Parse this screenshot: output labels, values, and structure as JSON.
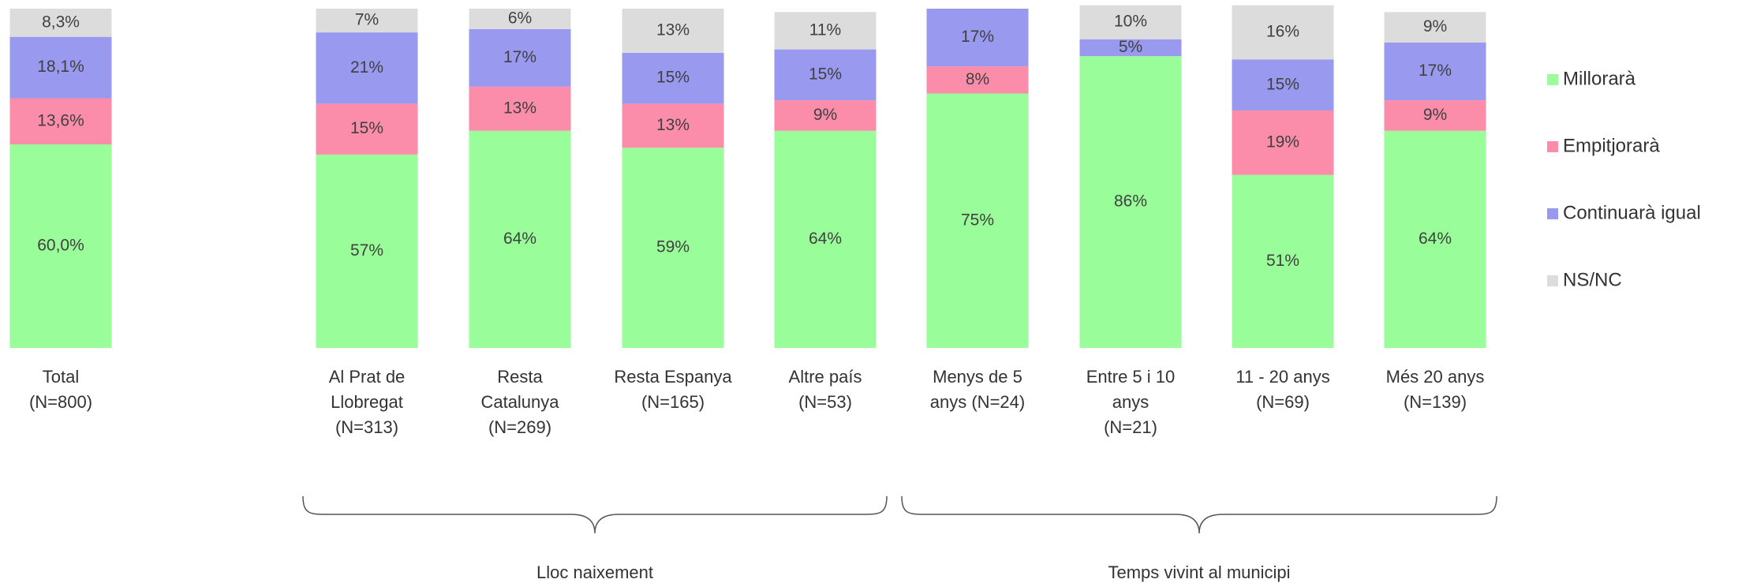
{
  "chart_data": {
    "type": "stacked_bar",
    "categories": [
      [
        "Total",
        "(N=800)"
      ],
      [
        "Al Prat de",
        "Llobregat",
        "(N=313)"
      ],
      [
        "Resta",
        "Catalunya",
        "(N=269)"
      ],
      [
        "Resta Espanya",
        "(N=165)"
      ],
      [
        "Altre país",
        "(N=53)"
      ],
      [
        "Menys de 5",
        "anys (N=24)"
      ],
      [
        "Entre 5 i 10",
        "anys",
        "(N=21)"
      ],
      [
        "11 - 20 anys",
        "(N=69)"
      ],
      [
        "Més 20 anys",
        "(N=139)"
      ]
    ],
    "series": [
      {
        "name": "Millorarà",
        "color": "#99fd99",
        "values": [
          60.0,
          57,
          64,
          59,
          64,
          75,
          86,
          51,
          64
        ],
        "value_labels": [
          "60,0%",
          "57%",
          "64%",
          "59%",
          "64%",
          "75%",
          "86%",
          "51%",
          "64%"
        ]
      },
      {
        "name": "Empitjorarà",
        "color": "#fb8daa",
        "values": [
          13.6,
          15,
          13,
          13,
          9,
          8,
          null,
          19,
          9
        ],
        "value_labels": [
          "13,6%",
          "15%",
          "13%",
          "13%",
          "9%",
          "8%",
          null,
          "19%",
          "9%"
        ]
      },
      {
        "name": "Continuarà igual",
        "color": "#9999f0",
        "values": [
          18.1,
          21,
          17,
          15,
          15,
          17,
          5,
          15,
          17
        ],
        "value_labels": [
          "18,1%",
          "21%",
          "17%",
          "15%",
          "15%",
          "17%",
          "5%",
          "15%",
          "17%"
        ]
      },
      {
        "name": "NS/NC",
        "color": "#dcdcdc",
        "values": [
          8.3,
          7,
          6,
          13,
          11,
          null,
          10,
          16,
          9
        ],
        "value_labels": [
          "8,3%",
          "7%",
          "6%",
          "13%",
          "11%",
          null,
          "10%",
          "16%",
          "9%"
        ]
      }
    ],
    "ylim": [
      0,
      100
    ],
    "groups": [
      "Lloc naixement",
      "Temps vivint al municipi"
    ],
    "legend": "right"
  }
}
